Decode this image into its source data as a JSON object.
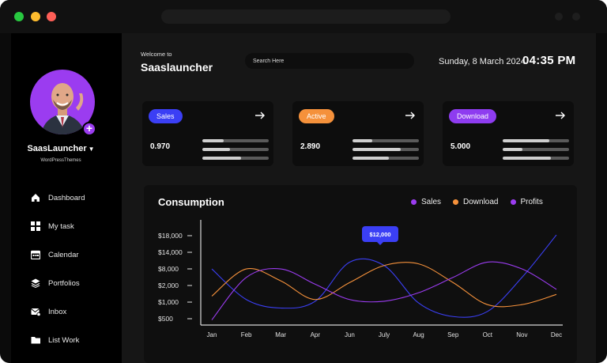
{
  "sidebar": {
    "user_name": "SaasLauncher",
    "user_subtitle": "WordPressThemes",
    "items": [
      {
        "label": "Dashboard",
        "icon": "home-icon"
      },
      {
        "label": "My task",
        "icon": "grid-icon"
      },
      {
        "label": "Calendar",
        "icon": "calendar-icon"
      },
      {
        "label": "Portfolios",
        "icon": "layers-icon"
      },
      {
        "label": "Inbox",
        "icon": "inbox-icon"
      },
      {
        "label": "List Work",
        "icon": "folder-icon"
      }
    ]
  },
  "header": {
    "welcome": "Welcome to",
    "title": "Saaslauncher",
    "search_placeholder": "Search Here",
    "date": "Sunday, 8 March 2024",
    "time": "04:35 PM"
  },
  "cards": [
    {
      "badge": "Sales",
      "value": "0.970",
      "color": "#3b3ff5",
      "bars": [
        0.32,
        0.42,
        0.58
      ]
    },
    {
      "badge": "Active",
      "value": "2.890",
      "color": "#f5913b",
      "bars": [
        0.3,
        0.73,
        0.55
      ]
    },
    {
      "badge": "Download",
      "value": "5.000",
      "color": "#8e3cf0",
      "bars": [
        0.7,
        0.3,
        0.73
      ]
    }
  ],
  "chart": {
    "title": "Consumption",
    "legend": [
      {
        "label": "Sales",
        "color": "#9b3cf0"
      },
      {
        "label": "Download",
        "color": "#f5913b"
      },
      {
        "label": "Profits",
        "color": "#9b3cf0"
      }
    ],
    "tooltip": "$12,000"
  },
  "chart_data": {
    "type": "line",
    "categories": [
      "Jan",
      "Feb",
      "Mar",
      "Apr",
      "Jun",
      "July",
      "Aug",
      "Sep",
      "Oct",
      "Nov",
      "Dec"
    ],
    "y_tick_labels": [
      "$18,000",
      "$14,000",
      "$8,000",
      "$2,000",
      "$1,000",
      "$500"
    ],
    "series": [
      {
        "color": "#3b3ff5",
        "values": [
          3.3,
          1.5,
          1.0,
          1.4,
          3.7,
          3.5,
          1.3,
          0.5,
          0.8,
          2.8,
          5.3
        ]
      },
      {
        "color": "#f5913b",
        "values": [
          1.7,
          3.3,
          2.6,
          1.5,
          2.5,
          3.5,
          3.6,
          2.5,
          1.2,
          1.2,
          1.8
        ]
      },
      {
        "color": "#9b3cf0",
        "values": [
          0.3,
          2.8,
          3.3,
          2.4,
          1.5,
          1.4,
          1.9,
          2.8,
          3.7,
          3.3,
          2.1
        ]
      }
    ]
  }
}
